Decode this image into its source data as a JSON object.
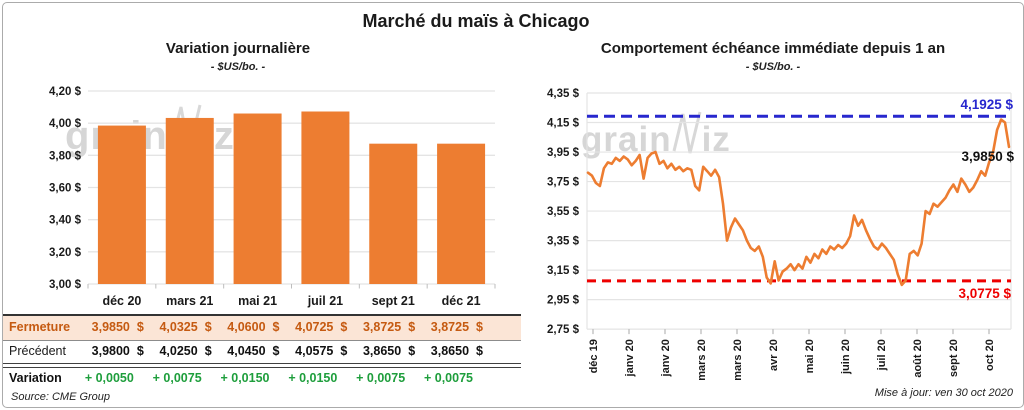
{
  "title": "Marché du maïs à Chicago",
  "watermark": {
    "part1": "grain",
    "part2": "iz"
  },
  "currency_symbol": "$",
  "footer": {
    "source": "Source: CME Group",
    "updated": "Mise à jour: ven 30 oct 2020"
  },
  "colors": {
    "orange": "#ED7D31",
    "fermeture_text": "#C55A11",
    "fermeture_bg": "#FBE5D6",
    "green": "#1E9E3C",
    "blue": "#2727CE",
    "red": "#EE0000",
    "grid": "#E4E4E4",
    "axis_dark": "#333333",
    "watermark": "#D8D8D8"
  },
  "table": {
    "columns": [
      "déc 20",
      "mars 21",
      "mai 21",
      "juil 21",
      "sept 21",
      "déc 21"
    ],
    "rows": [
      {
        "label": "Fermeture",
        "values": [
          "3,9850",
          "4,0325",
          "4,0600",
          "4,0725",
          "3,8725",
          "3,8725"
        ],
        "show_dollar": true,
        "style": "fermeture"
      },
      {
        "label": "Précédent",
        "values": [
          "3,9800",
          "4,0250",
          "4,0450",
          "4,0575",
          "3,8650",
          "3,8650"
        ],
        "show_dollar": true,
        "style": "precedent"
      },
      {
        "label": "Variation",
        "values": [
          "+ 0,0050",
          "+ 0,0075",
          "+ 0,0150",
          "+ 0,0150",
          "+ 0,0075",
          "+ 0,0075"
        ],
        "show_dollar": false,
        "style": "variation"
      }
    ]
  },
  "chart_data": [
    {
      "type": "bar",
      "title": "Variation journalière",
      "subtitle": "- $US/bo. -",
      "categories": [
        "déc 20",
        "mars 21",
        "mai 21",
        "juil 21",
        "sept 21",
        "déc 21"
      ],
      "values": [
        3.985,
        4.0325,
        4.06,
        4.0725,
        3.8725,
        3.8725
      ],
      "ylim": [
        3.0,
        4.2
      ],
      "ytick_values": [
        4.2,
        4.0,
        3.8,
        3.6,
        3.4,
        3.2,
        3.0
      ],
      "ytick_labels": [
        "4,20 $",
        "4,00 $",
        "3,80 $",
        "3,60 $",
        "3,40 $",
        "3,20 $",
        "3,00 $"
      ],
      "grid": true,
      "legend": "none"
    },
    {
      "type": "line",
      "title": "Comportement échéance immédiate depuis 1 an",
      "subtitle": "- $US/bo. -",
      "x_labels": [
        "déc 19",
        "janv 20",
        "janv 20",
        "mars 20",
        "mars 20",
        "avr 20",
        "mai 20",
        "juin 20",
        "juil 20",
        "août 20",
        "sept 20",
        "oct 20"
      ],
      "values": [
        3.81,
        3.79,
        3.74,
        3.72,
        3.84,
        3.88,
        3.87,
        3.91,
        3.89,
        3.92,
        3.9,
        3.86,
        3.89,
        3.93,
        3.77,
        3.91,
        3.94,
        3.95,
        3.87,
        3.89,
        3.84,
        3.87,
        3.83,
        3.85,
        3.82,
        3.84,
        3.83,
        3.72,
        3.69,
        3.85,
        3.82,
        3.79,
        3.83,
        3.78,
        3.6,
        3.35,
        3.44,
        3.5,
        3.46,
        3.42,
        3.35,
        3.3,
        3.28,
        3.31,
        3.24,
        3.1,
        3.06,
        3.21,
        3.08,
        3.14,
        3.16,
        3.19,
        3.15,
        3.19,
        3.16,
        3.24,
        3.2,
        3.26,
        3.23,
        3.29,
        3.26,
        3.31,
        3.29,
        3.32,
        3.3,
        3.33,
        3.38,
        3.52,
        3.45,
        3.49,
        3.42,
        3.36,
        3.31,
        3.29,
        3.33,
        3.3,
        3.26,
        3.22,
        3.12,
        3.05,
        3.08,
        3.26,
        3.28,
        3.25,
        3.33,
        3.55,
        3.53,
        3.6,
        3.58,
        3.61,
        3.64,
        3.69,
        3.73,
        3.68,
        3.77,
        3.73,
        3.68,
        3.71,
        3.76,
        3.82,
        3.79,
        3.88,
        3.95,
        4.1,
        4.17,
        4.15,
        3.985
      ],
      "ylim": [
        2.75,
        4.35
      ],
      "ytick_values": [
        4.35,
        4.15,
        3.95,
        3.75,
        3.55,
        3.35,
        3.15,
        2.95,
        2.75
      ],
      "ytick_labels": [
        "4,35 $",
        "4,15 $",
        "3,95 $",
        "3,75 $",
        "3,55 $",
        "3,35 $",
        "3,15 $",
        "2,95 $",
        "2,75 $"
      ],
      "hlines": [
        {
          "value": 4.1925,
          "label": "4,1925 $",
          "color": "#2727CE"
        },
        {
          "value": 3.0775,
          "label": "3,0775 $",
          "color": "#EE0000"
        }
      ],
      "end_label": "3,9850 $",
      "grid": true,
      "legend": "none"
    }
  ]
}
